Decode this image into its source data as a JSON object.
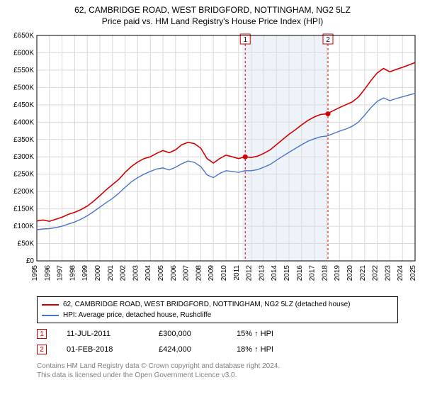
{
  "title_line1": "62, CAMBRIDGE ROAD, WEST BRIDGFORD, NOTTINGHAM, NG2 5LZ",
  "title_line2": "Price paid vs. HM Land Registry's House Price Index (HPI)",
  "chart": {
    "type": "line",
    "background_color": "#ffffff",
    "plot_bg": "#ffffff",
    "grid_color": "#d9d9d9",
    "shaded_band": {
      "from": 2011.3,
      "to": 2018.0,
      "fill": "#eef2f9"
    },
    "x": {
      "min": 1995,
      "max": 2025,
      "ticks": [
        1995,
        1996,
        1997,
        1998,
        1999,
        2000,
        2001,
        2002,
        2003,
        2004,
        2005,
        2006,
        2007,
        2008,
        2009,
        2010,
        2011,
        2012,
        2013,
        2014,
        2015,
        2016,
        2017,
        2018,
        2019,
        2020,
        2021,
        2022,
        2023,
        2024,
        2025
      ],
      "tick_fontsize": 10,
      "tick_rotation": -90
    },
    "y": {
      "min": 0,
      "max": 650000,
      "ticks": [
        0,
        50000,
        100000,
        150000,
        200000,
        250000,
        300000,
        350000,
        400000,
        450000,
        500000,
        550000,
        600000,
        650000
      ],
      "tick_labels": [
        "£0",
        "£50K",
        "£100K",
        "£150K",
        "£200K",
        "£250K",
        "£300K",
        "£350K",
        "£400K",
        "£450K",
        "£500K",
        "£550K",
        "£600K",
        "£650K"
      ],
      "tick_fontsize": 10
    },
    "series": [
      {
        "name": "62, CAMBRIDGE ROAD, WEST BRIDGFORD, NOTTINGHAM, NG2 5LZ (detached house)",
        "color": "#d40000",
        "line_width": 1.6,
        "points": [
          [
            1995,
            115000
          ],
          [
            1995.5,
            118000
          ],
          [
            1996,
            114000
          ],
          [
            1996.5,
            120000
          ],
          [
            1997,
            126000
          ],
          [
            1997.5,
            134000
          ],
          [
            1998,
            140000
          ],
          [
            1998.5,
            148000
          ],
          [
            1999,
            158000
          ],
          [
            1999.5,
            172000
          ],
          [
            2000,
            188000
          ],
          [
            2000.5,
            205000
          ],
          [
            2001,
            220000
          ],
          [
            2001.5,
            235000
          ],
          [
            2002,
            255000
          ],
          [
            2002.5,
            272000
          ],
          [
            2003,
            285000
          ],
          [
            2003.5,
            295000
          ],
          [
            2004,
            300000
          ],
          [
            2004.5,
            310000
          ],
          [
            2005,
            318000
          ],
          [
            2005.5,
            312000
          ],
          [
            2006,
            320000
          ],
          [
            2006.5,
            335000
          ],
          [
            2007,
            342000
          ],
          [
            2007.5,
            338000
          ],
          [
            2008,
            325000
          ],
          [
            2008.5,
            295000
          ],
          [
            2009,
            282000
          ],
          [
            2009.5,
            295000
          ],
          [
            2010,
            305000
          ],
          [
            2010.5,
            300000
          ],
          [
            2011,
            295000
          ],
          [
            2011.5,
            300000
          ],
          [
            2012,
            298000
          ],
          [
            2012.5,
            302000
          ],
          [
            2013,
            310000
          ],
          [
            2013.5,
            320000
          ],
          [
            2014,
            335000
          ],
          [
            2014.5,
            350000
          ],
          [
            2015,
            365000
          ],
          [
            2015.5,
            378000
          ],
          [
            2016,
            392000
          ],
          [
            2016.5,
            405000
          ],
          [
            2017,
            415000
          ],
          [
            2017.5,
            422000
          ],
          [
            2018,
            424000
          ],
          [
            2018.5,
            433000
          ],
          [
            2019,
            442000
          ],
          [
            2019.5,
            450000
          ],
          [
            2020,
            458000
          ],
          [
            2020.5,
            472000
          ],
          [
            2021,
            495000
          ],
          [
            2021.5,
            520000
          ],
          [
            2022,
            542000
          ],
          [
            2022.5,
            555000
          ],
          [
            2023,
            545000
          ],
          [
            2023.5,
            552000
          ],
          [
            2024,
            558000
          ],
          [
            2024.5,
            565000
          ],
          [
            2025,
            572000
          ]
        ]
      },
      {
        "name": "HPI: Average price, detached house, Rushcliffe",
        "color": "#4a74c9",
        "line_width": 1.4,
        "points": [
          [
            1995,
            90000
          ],
          [
            1995.5,
            92000
          ],
          [
            1996,
            93000
          ],
          [
            1996.5,
            96000
          ],
          [
            1997,
            100000
          ],
          [
            1997.5,
            106000
          ],
          [
            1998,
            112000
          ],
          [
            1998.5,
            120000
          ],
          [
            1999,
            130000
          ],
          [
            1999.5,
            142000
          ],
          [
            2000,
            155000
          ],
          [
            2000.5,
            168000
          ],
          [
            2001,
            180000
          ],
          [
            2001.5,
            195000
          ],
          [
            2002,
            212000
          ],
          [
            2002.5,
            228000
          ],
          [
            2003,
            240000
          ],
          [
            2003.5,
            250000
          ],
          [
            2004,
            258000
          ],
          [
            2004.5,
            265000
          ],
          [
            2005,
            268000
          ],
          [
            2005.5,
            262000
          ],
          [
            2006,
            270000
          ],
          [
            2006.5,
            280000
          ],
          [
            2007,
            288000
          ],
          [
            2007.5,
            284000
          ],
          [
            2008,
            272000
          ],
          [
            2008.5,
            248000
          ],
          [
            2009,
            240000
          ],
          [
            2009.5,
            252000
          ],
          [
            2010,
            260000
          ],
          [
            2010.5,
            258000
          ],
          [
            2011,
            255000
          ],
          [
            2011.5,
            260000
          ],
          [
            2012,
            260000
          ],
          [
            2012.5,
            263000
          ],
          [
            2013,
            270000
          ],
          [
            2013.5,
            278000
          ],
          [
            2014,
            290000
          ],
          [
            2014.5,
            302000
          ],
          [
            2015,
            313000
          ],
          [
            2015.5,
            324000
          ],
          [
            2016,
            335000
          ],
          [
            2016.5,
            345000
          ],
          [
            2017,
            352000
          ],
          [
            2017.5,
            358000
          ],
          [
            2018,
            360000
          ],
          [
            2018.5,
            367000
          ],
          [
            2019,
            374000
          ],
          [
            2019.5,
            380000
          ],
          [
            2020,
            388000
          ],
          [
            2020.5,
            400000
          ],
          [
            2021,
            420000
          ],
          [
            2021.5,
            442000
          ],
          [
            2022,
            460000
          ],
          [
            2022.5,
            470000
          ],
          [
            2023,
            462000
          ],
          [
            2023.5,
            468000
          ],
          [
            2024,
            473000
          ],
          [
            2024.5,
            478000
          ],
          [
            2025,
            483000
          ]
        ]
      }
    ],
    "sale_markers": [
      {
        "n": 1,
        "x": 2011.53,
        "y": 300000,
        "color": "#d40000"
      },
      {
        "n": 2,
        "x": 2018.09,
        "y": 424000,
        "color": "#d40000"
      }
    ],
    "flag_lines": [
      {
        "n": 1,
        "x": 2011.53,
        "color": "#d40000"
      },
      {
        "n": 2,
        "x": 2018.09,
        "color": "#d40000"
      }
    ]
  },
  "legend": {
    "items": [
      {
        "color": "#d40000",
        "label": "62, CAMBRIDGE ROAD, WEST BRIDGFORD, NOTTINGHAM, NG2 5LZ (detached house)"
      },
      {
        "color": "#4a74c9",
        "label": "HPI: Average price, detached house, Rushcliffe"
      }
    ]
  },
  "sales": [
    {
      "n": "1",
      "badge_color": "#d40000",
      "date": "11-JUL-2011",
      "price": "£300,000",
      "pct": "15% ↑ HPI"
    },
    {
      "n": "2",
      "badge_color": "#d40000",
      "date": "01-FEB-2018",
      "price": "£424,000",
      "pct": "18% ↑ HPI"
    }
  ],
  "footer_line1": "Contains HM Land Registry data © Crown copyright and database right 2024.",
  "footer_line2": "This data is licensed under the Open Government Licence v3.0."
}
